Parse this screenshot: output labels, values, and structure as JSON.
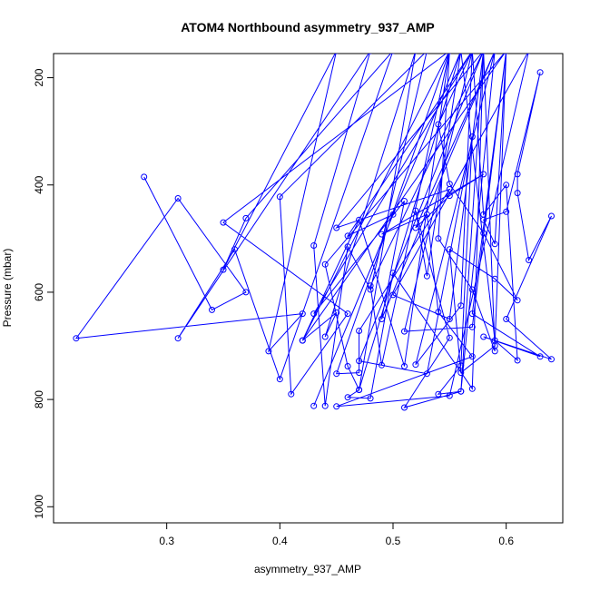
{
  "chart_data": {
    "type": "line",
    "title": "ATOM4 Northbound asymmetry_937_AMP",
    "xlabel": "asymmetry_937_AMP",
    "ylabel": "Pressure (mbar)",
    "xlim": [
      0.2,
      0.65
    ],
    "ylim": [
      1030,
      155
    ],
    "y_reversed": true,
    "grid": false,
    "legend": "none",
    "x_ticks": [
      0.3,
      0.4,
      0.5,
      0.6
    ],
    "x_tick_labels": [
      "0.3",
      "0.4",
      "0.5",
      "0.6"
    ],
    "y_ticks": [
      200,
      400,
      600,
      800,
      1000
    ],
    "y_tick_labels": [
      "200",
      "400",
      "600",
      "800",
      "1000"
    ],
    "series": [
      {
        "color": "#0000ff",
        "marker": "open-circle",
        "points": [
          [
            0.28,
            385
          ],
          [
            0.34,
            633
          ],
          [
            0.37,
            600
          ],
          [
            0.31,
            425
          ],
          [
            0.22,
            686
          ],
          [
            0.42,
            640
          ],
          [
            0.39,
            710
          ],
          [
            0.45,
            150
          ],
          [
            0.35,
            558
          ],
          [
            0.37,
            462
          ],
          [
            0.5,
            150
          ],
          [
            0.4,
            762
          ],
          [
            0.36,
            520
          ],
          [
            0.31,
            686
          ],
          [
            0.48,
            150
          ],
          [
            0.43,
            513
          ],
          [
            0.44,
            812
          ],
          [
            0.46,
            515
          ],
          [
            0.48,
            595
          ],
          [
            0.53,
            150
          ],
          [
            0.4,
            422
          ],
          [
            0.41,
            790
          ],
          [
            0.46,
            640
          ],
          [
            0.35,
            470
          ],
          [
            0.55,
            150
          ],
          [
            0.45,
            752
          ],
          [
            0.47,
            750
          ],
          [
            0.47,
            672
          ],
          [
            0.55,
            408
          ],
          [
            0.45,
            480
          ],
          [
            0.58,
            150
          ],
          [
            0.48,
            588
          ],
          [
            0.49,
            736
          ],
          [
            0.55,
            150
          ],
          [
            0.51,
            738
          ],
          [
            0.47,
            465
          ],
          [
            0.42,
            690
          ],
          [
            0.6,
            150
          ],
          [
            0.44,
            548
          ],
          [
            0.46,
            738
          ],
          [
            0.47,
            782
          ],
          [
            0.56,
            150
          ],
          [
            0.43,
            812
          ],
          [
            0.5,
            455
          ],
          [
            0.46,
            495
          ],
          [
            0.57,
            150
          ],
          [
            0.43,
            640
          ],
          [
            0.51,
            430
          ],
          [
            0.49,
            650
          ],
          [
            0.59,
            150
          ],
          [
            0.52,
            480
          ],
          [
            0.55,
            420
          ],
          [
            0.58,
            380
          ],
          [
            0.49,
            492
          ],
          [
            0.53,
            455
          ],
          [
            0.54,
            637
          ],
          [
            0.57,
            720
          ],
          [
            0.45,
            813
          ],
          [
            0.55,
            793
          ],
          [
            0.62,
            150
          ],
          [
            0.5,
            605
          ],
          [
            0.55,
            650
          ],
          [
            0.58,
            150
          ],
          [
            0.47,
            728
          ],
          [
            0.53,
            752
          ],
          [
            0.57,
            310
          ],
          [
            0.56,
            737
          ],
          [
            0.54,
            790
          ],
          [
            0.56,
            785
          ],
          [
            0.59,
            150
          ],
          [
            0.52,
            735
          ],
          [
            0.56,
            625
          ],
          [
            0.57,
            150
          ],
          [
            0.51,
            673
          ],
          [
            0.57,
            665
          ],
          [
            0.6,
            150
          ],
          [
            0.59,
            510
          ],
          [
            0.58,
            465
          ],
          [
            0.6,
            450
          ],
          [
            0.63,
            190
          ],
          [
            0.61,
            380
          ],
          [
            0.61,
            415
          ],
          [
            0.62,
            540
          ],
          [
            0.64,
            458
          ],
          [
            0.6,
            650
          ],
          [
            0.64,
            725
          ],
          [
            0.58,
            683
          ],
          [
            0.63,
            720
          ],
          [
            0.57,
            640
          ],
          [
            0.6,
            150
          ],
          [
            0.59,
            700
          ],
          [
            0.56,
            750
          ],
          [
            0.55,
            520
          ],
          [
            0.59,
            575
          ],
          [
            0.61,
            615
          ],
          [
            0.58,
            490
          ],
          [
            0.55,
            398
          ],
          [
            0.54,
            287
          ],
          [
            0.57,
            150
          ],
          [
            0.58,
            455
          ],
          [
            0.6,
            400
          ],
          [
            0.61,
            727
          ],
          [
            0.59,
            690
          ],
          [
            0.56,
            150
          ],
          [
            0.53,
            570
          ],
          [
            0.52,
            448
          ],
          [
            0.55,
            685
          ],
          [
            0.51,
            815
          ],
          [
            0.56,
            785
          ],
          [
            0.58,
            150
          ],
          [
            0.57,
            780
          ],
          [
            0.5,
            564
          ],
          [
            0.48,
            798
          ],
          [
            0.46,
            796
          ],
          [
            0.47,
            782
          ],
          [
            0.52,
            150
          ],
          [
            0.44,
            683
          ],
          [
            0.45,
            638
          ],
          [
            0.42,
            690
          ],
          [
            0.55,
            150
          ],
          [
            0.54,
            500
          ],
          [
            0.57,
            595
          ],
          [
            0.59,
            710
          ],
          [
            0.58,
            150
          ]
        ]
      }
    ]
  }
}
